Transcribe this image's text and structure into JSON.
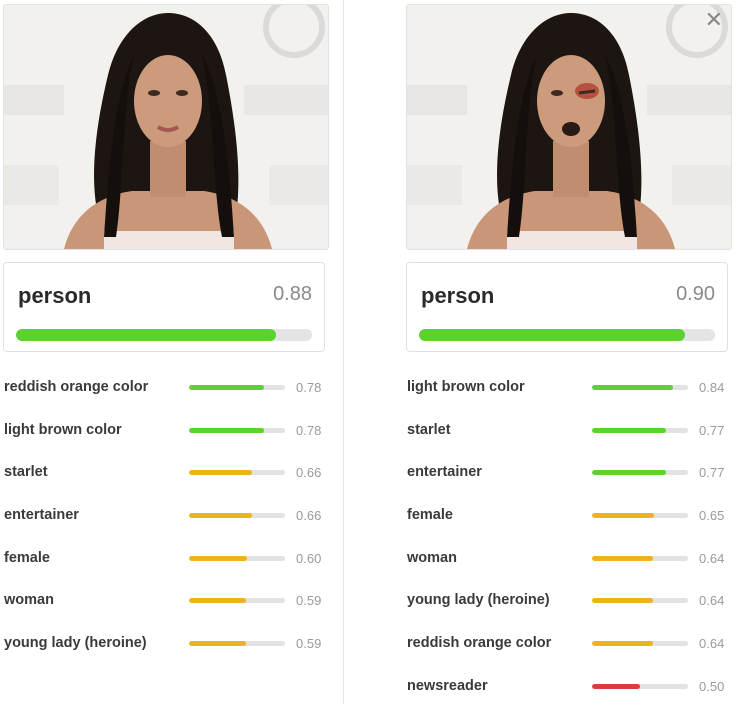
{
  "colors": {
    "green": "#5bd22f",
    "orange": "#f0b21a",
    "red": "#dc3b3b",
    "track": "#e2e2e2"
  },
  "panels": [
    {
      "top": {
        "label": "person",
        "score": "0.88",
        "fraction": 0.88,
        "color": "green"
      },
      "rows": [
        {
          "label": "reddish orange color",
          "score": "0.78",
          "fraction": 0.78,
          "color": "green"
        },
        {
          "label": "light brown color",
          "score": "0.78",
          "fraction": 0.78,
          "color": "green"
        },
        {
          "label": "starlet",
          "score": "0.66",
          "fraction": 0.66,
          "color": "orange"
        },
        {
          "label": "entertainer",
          "score": "0.66",
          "fraction": 0.66,
          "color": "orange"
        },
        {
          "label": "female",
          "score": "0.60",
          "fraction": 0.6,
          "color": "orange"
        },
        {
          "label": "woman",
          "score": "0.59",
          "fraction": 0.59,
          "color": "orange"
        },
        {
          "label": "young lady (heroine)",
          "score": "0.59",
          "fraction": 0.59,
          "color": "orange"
        }
      ]
    },
    {
      "top": {
        "label": "person",
        "score": "0.90",
        "fraction": 0.9,
        "color": "green"
      },
      "rows": [
        {
          "label": "light brown color",
          "score": "0.84",
          "fraction": 0.84,
          "color": "green"
        },
        {
          "label": "starlet",
          "score": "0.77",
          "fraction": 0.77,
          "color": "green"
        },
        {
          "label": "entertainer",
          "score": "0.77",
          "fraction": 0.77,
          "color": "green"
        },
        {
          "label": "female",
          "score": "0.65",
          "fraction": 0.65,
          "color": "orange"
        },
        {
          "label": "woman",
          "score": "0.64",
          "fraction": 0.64,
          "color": "orange"
        },
        {
          "label": "young lady (heroine)",
          "score": "0.64",
          "fraction": 0.64,
          "color": "orange"
        },
        {
          "label": "reddish orange color",
          "score": "0.64",
          "fraction": 0.64,
          "color": "orange"
        },
        {
          "label": "newsreader",
          "score": "0.50",
          "fraction": 0.5,
          "color": "red"
        }
      ]
    }
  ],
  "icons": {
    "close": "close-icon"
  }
}
